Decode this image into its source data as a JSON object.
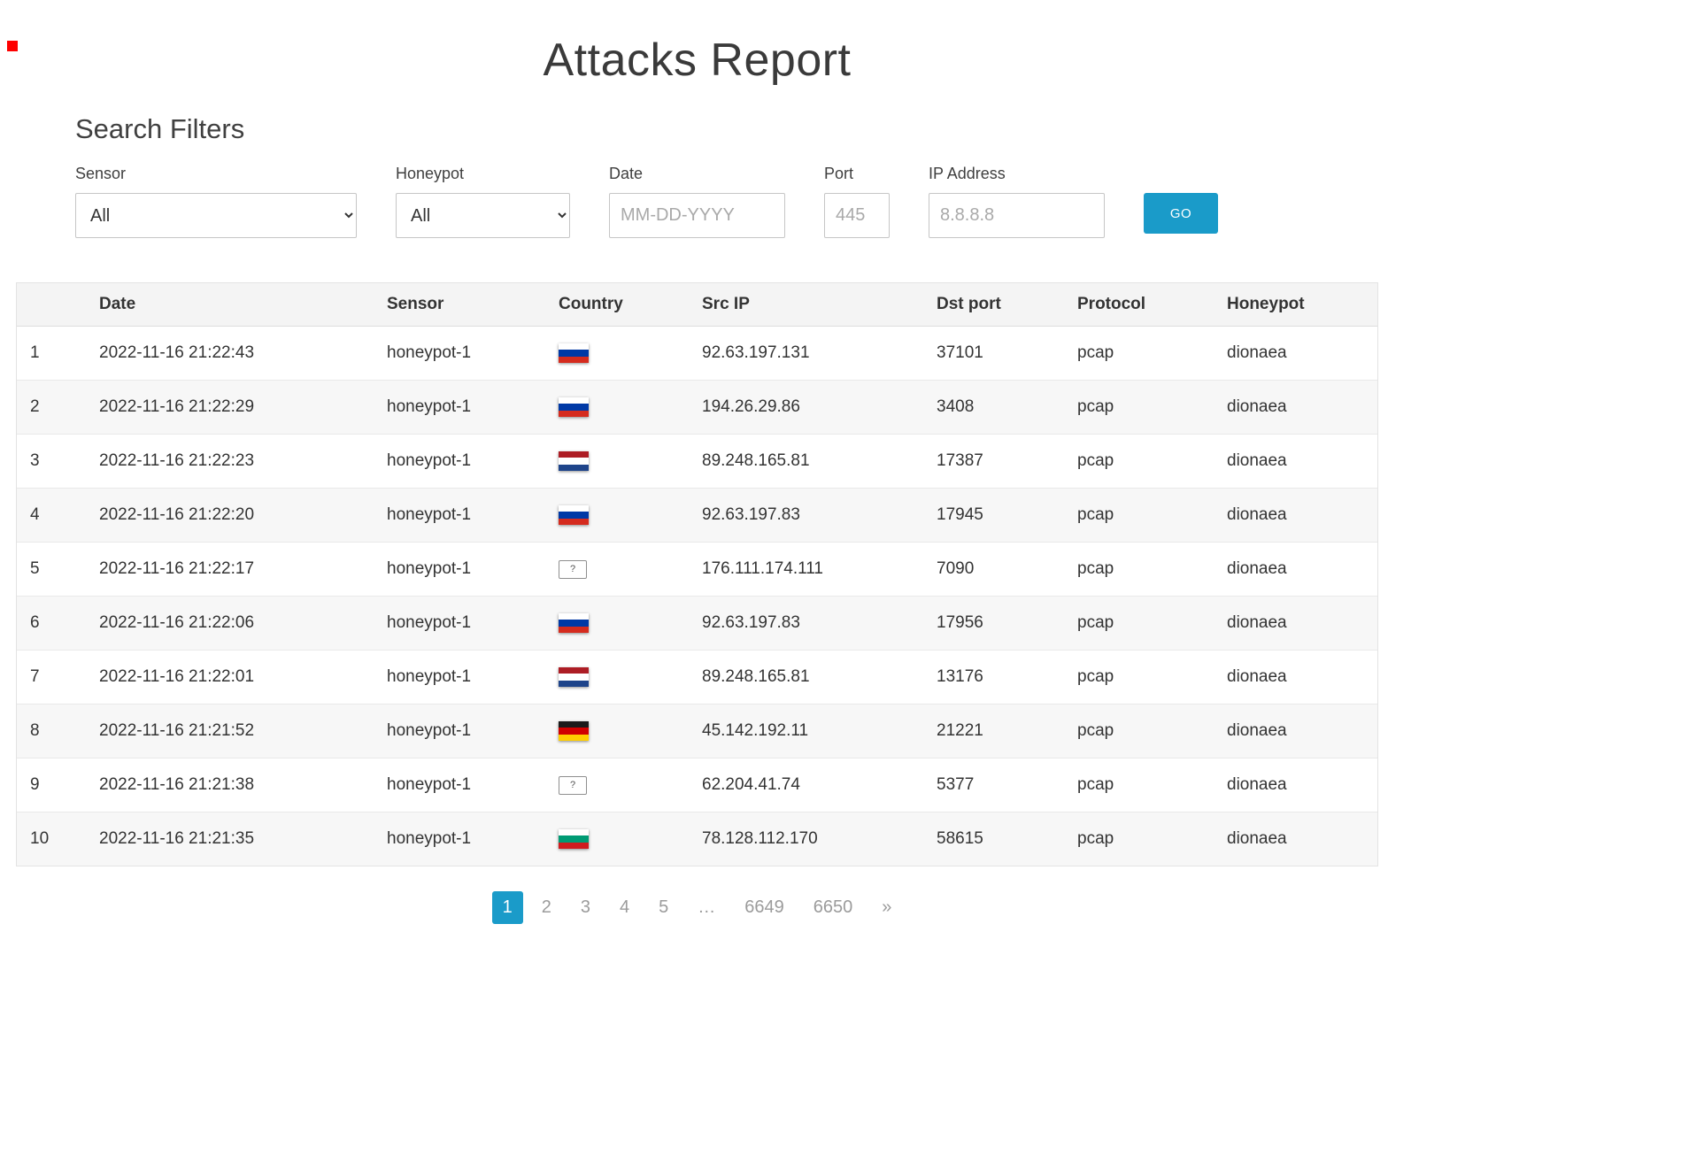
{
  "page": {
    "title": "Attacks Report"
  },
  "filters": {
    "heading": "Search Filters",
    "sensor": {
      "label": "Sensor",
      "value": "All"
    },
    "honeypot": {
      "label": "Honeypot",
      "value": "All"
    },
    "date": {
      "label": "Date",
      "placeholder": "MM-DD-YYYY"
    },
    "port": {
      "label": "Port",
      "placeholder": "445"
    },
    "ip_address": {
      "label": "IP Address",
      "placeholder": "8.8.8.8"
    },
    "go_label": "GO"
  },
  "table": {
    "headers": [
      "Date",
      "Sensor",
      "Country",
      "Src IP",
      "Dst port",
      "Protocol",
      "Honeypot"
    ],
    "unknown_flag_glyph": "?",
    "rows": [
      {
        "num": "1",
        "date": "2022-11-16 21:22:43",
        "sensor": "honeypot-1",
        "country": "ru",
        "src_ip": "92.63.197.131",
        "dst_port": "37101",
        "protocol": "pcap",
        "honeypot": "dionaea"
      },
      {
        "num": "2",
        "date": "2022-11-16 21:22:29",
        "sensor": "honeypot-1",
        "country": "ru",
        "src_ip": "194.26.29.86",
        "dst_port": "3408",
        "protocol": "pcap",
        "honeypot": "dionaea"
      },
      {
        "num": "3",
        "date": "2022-11-16 21:22:23",
        "sensor": "honeypot-1",
        "country": "nl",
        "src_ip": "89.248.165.81",
        "dst_port": "17387",
        "protocol": "pcap",
        "honeypot": "dionaea"
      },
      {
        "num": "4",
        "date": "2022-11-16 21:22:20",
        "sensor": "honeypot-1",
        "country": "ru",
        "src_ip": "92.63.197.83",
        "dst_port": "17945",
        "protocol": "pcap",
        "honeypot": "dionaea"
      },
      {
        "num": "5",
        "date": "2022-11-16 21:22:17",
        "sensor": "honeypot-1",
        "country": "unknown",
        "src_ip": "176.111.174.111",
        "dst_port": "7090",
        "protocol": "pcap",
        "honeypot": "dionaea"
      },
      {
        "num": "6",
        "date": "2022-11-16 21:22:06",
        "sensor": "honeypot-1",
        "country": "ru",
        "src_ip": "92.63.197.83",
        "dst_port": "17956",
        "protocol": "pcap",
        "honeypot": "dionaea"
      },
      {
        "num": "7",
        "date": "2022-11-16 21:22:01",
        "sensor": "honeypot-1",
        "country": "nl",
        "src_ip": "89.248.165.81",
        "dst_port": "13176",
        "protocol": "pcap",
        "honeypot": "dionaea"
      },
      {
        "num": "8",
        "date": "2022-11-16 21:21:52",
        "sensor": "honeypot-1",
        "country": "de",
        "src_ip": "45.142.192.11",
        "dst_port": "21221",
        "protocol": "pcap",
        "honeypot": "dionaea"
      },
      {
        "num": "9",
        "date": "2022-11-16 21:21:38",
        "sensor": "honeypot-1",
        "country": "unknown",
        "src_ip": "62.204.41.74",
        "dst_port": "5377",
        "protocol": "pcap",
        "honeypot": "dionaea"
      },
      {
        "num": "10",
        "date": "2022-11-16 21:21:35",
        "sensor": "honeypot-1",
        "country": "bg",
        "src_ip": "78.128.112.170",
        "dst_port": "58615",
        "protocol": "pcap",
        "honeypot": "dionaea"
      }
    ]
  },
  "flags": {
    "ru": [
      "#ffffff",
      "#0039a6",
      "#d52b1e"
    ],
    "nl": [
      "#ad1d25",
      "#ffffff",
      "#1e448a"
    ],
    "de": [
      "#1a1a1a",
      "#d00000",
      "#ffce00"
    ],
    "bg": [
      "#ffffff",
      "#009b74",
      "#d01c1f"
    ]
  },
  "pagination": {
    "items": [
      "1",
      "2",
      "3",
      "4",
      "5",
      "…",
      "6649",
      "6650",
      "»"
    ],
    "active": "1"
  },
  "colors": {
    "accent": "#1a9bc9",
    "header_bg": "#f4f4f4",
    "row_alt_bg": "#f7f7f7",
    "border": "#dddddd",
    "text": "#333333",
    "muted": "#9b9b9b",
    "marker_red": "#fe0000"
  }
}
